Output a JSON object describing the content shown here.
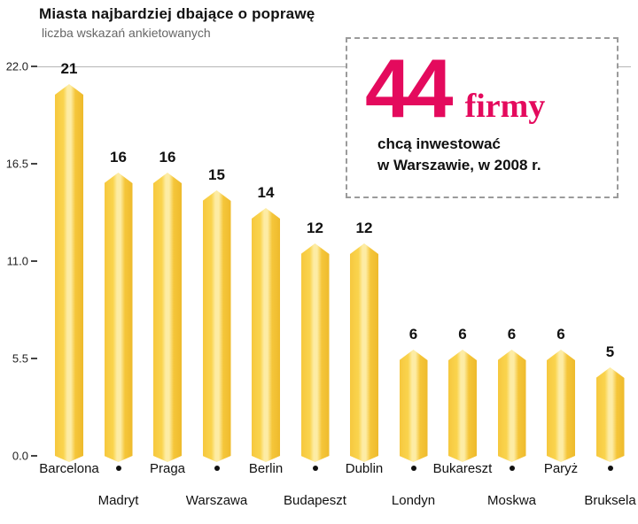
{
  "header": {
    "title": "Miasta najbardziej dbające o poprawę",
    "subtitle": "liczba wskazań ankietowanych"
  },
  "callout": {
    "number": "44",
    "unit": "firmy",
    "line1": "chcą inwestować",
    "line2": "w Warszawie, w 2008 r.",
    "accent_color": "#e40a5d"
  },
  "chart_data": {
    "type": "bar",
    "title": "Miasta najbardziej dbające o poprawę",
    "subtitle": "liczba wskazań ankietowanych",
    "categories": [
      "Barcelona",
      "Madryt",
      "Praga",
      "Warszawa",
      "Berlin",
      "Budapeszt",
      "Dublin",
      "Londyn",
      "Bukareszt",
      "Moskwa",
      "Paryż",
      "Bruksela"
    ],
    "values": [
      21,
      16,
      16,
      15,
      14,
      12,
      12,
      6,
      6,
      6,
      6,
      5
    ],
    "ylim": [
      0,
      22
    ],
    "yticks": [
      {
        "value": 0,
        "label": "0.0"
      },
      {
        "value": 5.5,
        "label": "5.5"
      },
      {
        "value": 11,
        "label": "11.0"
      },
      {
        "value": 16.5,
        "label": "16.5"
      },
      {
        "value": 22,
        "label": "22.0"
      }
    ],
    "grid": "top-line-only",
    "legend": "none",
    "bar_color": "#fad44e",
    "bar_color_light": "#fdeca4",
    "bar_color_dark": "#eeba2c",
    "label_layout": "alternating-two-rows-with-dots"
  }
}
